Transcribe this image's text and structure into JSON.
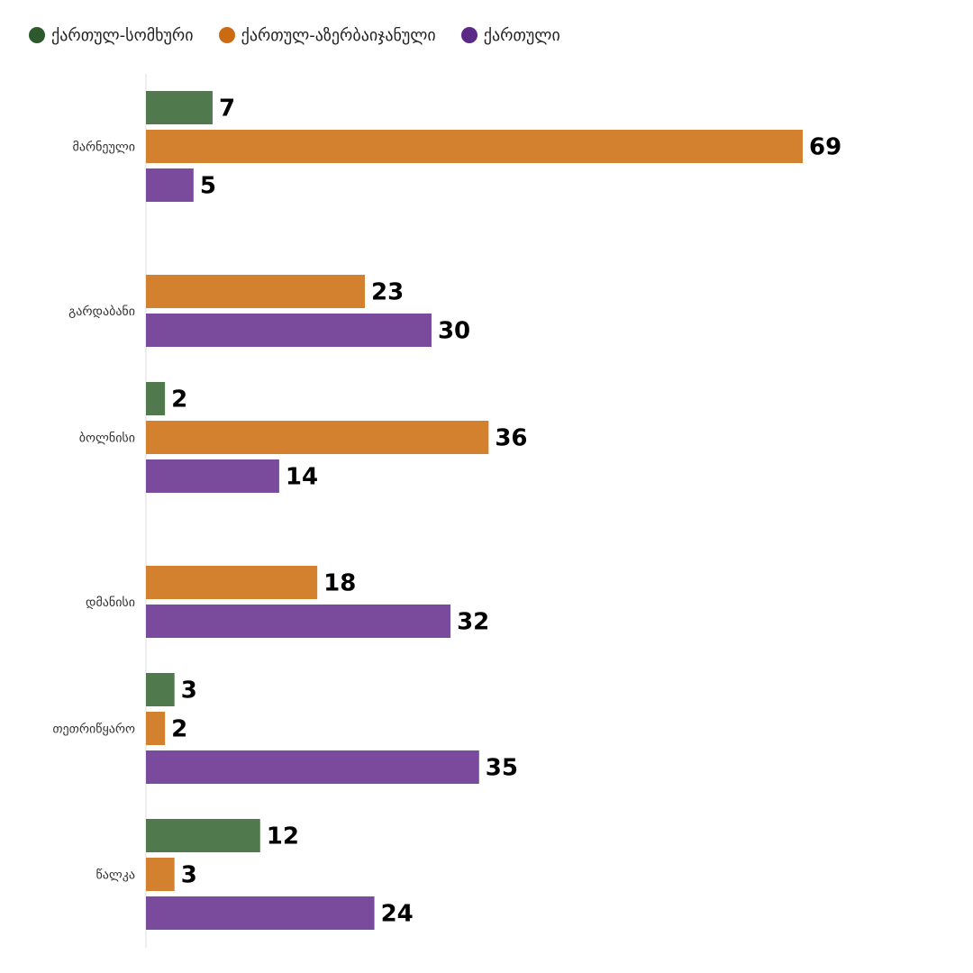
{
  "chart_data": {
    "type": "bar",
    "orientation": "horizontal",
    "categories": [
      "მარნეული",
      "გარდაბანი",
      "ბოლნისი",
      "დმანისი",
      "თეთრიწყარო",
      "წალკა"
    ],
    "series": [
      {
        "name": "ქართულ-სომხური",
        "color": "#507a4e",
        "legend_color": "#2d5a2d",
        "values": [
          7,
          null,
          2,
          null,
          3,
          12
        ]
      },
      {
        "name": "ქართულ-აზერბაიჯანული",
        "color": "#d4812f",
        "legend_color": "#cc6a12",
        "values": [
          69,
          23,
          36,
          18,
          2,
          3
        ]
      },
      {
        "name": "ქართული",
        "color": "#7a4a9c",
        "legend_color": "#5a2a86",
        "values": [
          5,
          30,
          14,
          32,
          35,
          24
        ]
      }
    ],
    "legend_position": "top-left",
    "grid": false,
    "xlim": [
      0,
      69
    ]
  }
}
